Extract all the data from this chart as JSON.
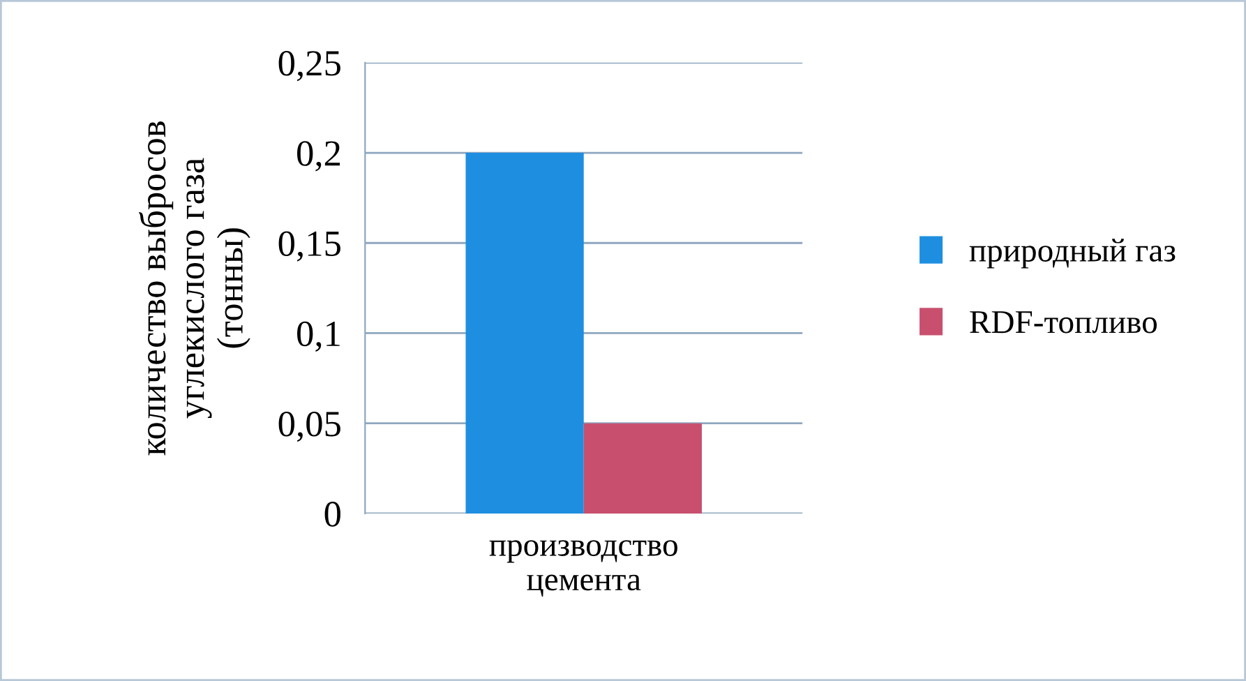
{
  "chart_data": {
    "type": "bar",
    "ylabel": "количество выбросов\nуглекислого газа\n(тонны)",
    "categories": [
      "производство\nцемента"
    ],
    "series": [
      {
        "name": "природный газ",
        "color": "#1e8fe0",
        "values": [
          0.2
        ]
      },
      {
        "name": "RDF-топливо",
        "color": "#c8506e",
        "values": [
          0.05
        ]
      }
    ],
    "ylim": [
      0,
      0.25
    ],
    "yticks": [
      0,
      {
        "value": 0.05,
        "label": "0,05"
      },
      {
        "value": 0.1,
        "label": "0,1"
      },
      {
        "value": 0.15,
        "label": "0,15"
      },
      {
        "value": 0.2,
        "label": "0,2"
      },
      {
        "value": 0.25,
        "label": "0,25"
      }
    ],
    "grid": "y",
    "legend": "right"
  }
}
